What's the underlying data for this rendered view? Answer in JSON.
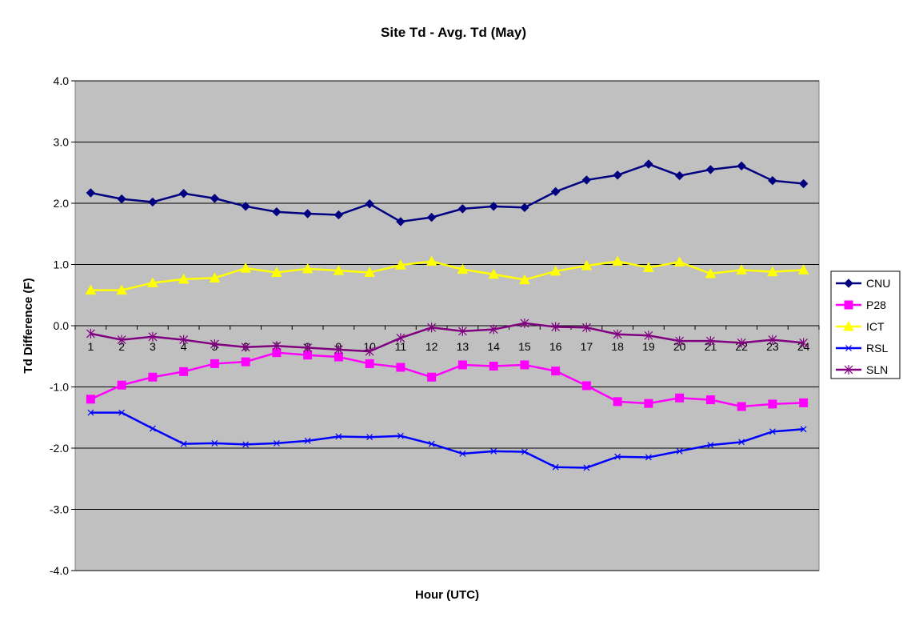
{
  "chart_data": {
    "type": "line",
    "title": "Site Td - Avg. Td (May)",
    "xlabel": "Hour (UTC)",
    "ylabel": "Td Difference (F)",
    "ylim": [
      -4.0,
      4.0
    ],
    "yticks": [
      "4.0",
      "3.0",
      "2.0",
      "1.0",
      "0.0",
      "-1.0",
      "-2.0",
      "-3.0",
      "-4.0"
    ],
    "ytick_values": [
      4,
      3,
      2,
      1,
      0,
      -1,
      -2,
      -3,
      -4
    ],
    "categories": [
      "1",
      "2",
      "3",
      "4",
      "5",
      "6",
      "7",
      "8",
      "9",
      "10",
      "11",
      "12",
      "13",
      "14",
      "15",
      "16",
      "17",
      "18",
      "19",
      "20",
      "21",
      "22",
      "23",
      "24"
    ],
    "plot_background": "#c0c0c0",
    "grid": true,
    "legend_position": "right",
    "series": [
      {
        "name": "CNU",
        "color": "#000080",
        "marker": "diamond",
        "values": [
          2.17,
          2.07,
          2.02,
          2.16,
          2.08,
          1.95,
          1.86,
          1.83,
          1.81,
          1.99,
          1.7,
          1.77,
          1.91,
          1.95,
          1.93,
          2.19,
          2.38,
          2.46,
          2.64,
          2.45,
          2.55,
          2.61,
          2.37,
          2.32
        ]
      },
      {
        "name": "P28",
        "color": "#ff00ff",
        "marker": "square",
        "values": [
          -1.2,
          -0.97,
          -0.84,
          -0.75,
          -0.62,
          -0.59,
          -0.44,
          -0.48,
          -0.51,
          -0.62,
          -0.68,
          -0.84,
          -0.64,
          -0.66,
          -0.64,
          -0.74,
          -0.98,
          -1.24,
          -1.27,
          -1.18,
          -1.21,
          -1.32,
          -1.28,
          -1.26
        ]
      },
      {
        "name": "ICT",
        "color": "#ffff00",
        "marker": "triangle",
        "values": [
          0.58,
          0.58,
          0.7,
          0.76,
          0.78,
          0.94,
          0.87,
          0.93,
          0.9,
          0.87,
          0.99,
          1.05,
          0.92,
          0.84,
          0.75,
          0.89,
          0.98,
          1.05,
          0.95,
          1.04,
          0.85,
          0.91,
          0.88,
          0.91
        ]
      },
      {
        "name": "RSL",
        "color": "#0000ff",
        "marker": "x",
        "values": [
          -1.42,
          -1.42,
          -1.68,
          -1.93,
          -1.92,
          -1.94,
          -1.92,
          -1.88,
          -1.81,
          -1.82,
          -1.8,
          -1.93,
          -2.09,
          -2.05,
          -2.06,
          -2.31,
          -2.32,
          -2.14,
          -2.15,
          -2.05,
          -1.95,
          -1.9,
          -1.73,
          -1.69
        ]
      },
      {
        "name": "SLN",
        "color": "#800080",
        "marker": "star",
        "values": [
          -0.13,
          -0.23,
          -0.18,
          -0.23,
          -0.3,
          -0.35,
          -0.33,
          -0.36,
          -0.39,
          -0.42,
          -0.2,
          -0.03,
          -0.09,
          -0.06,
          0.04,
          -0.02,
          -0.03,
          -0.14,
          -0.16,
          -0.25,
          -0.25,
          -0.28,
          -0.23,
          -0.28
        ]
      }
    ]
  }
}
